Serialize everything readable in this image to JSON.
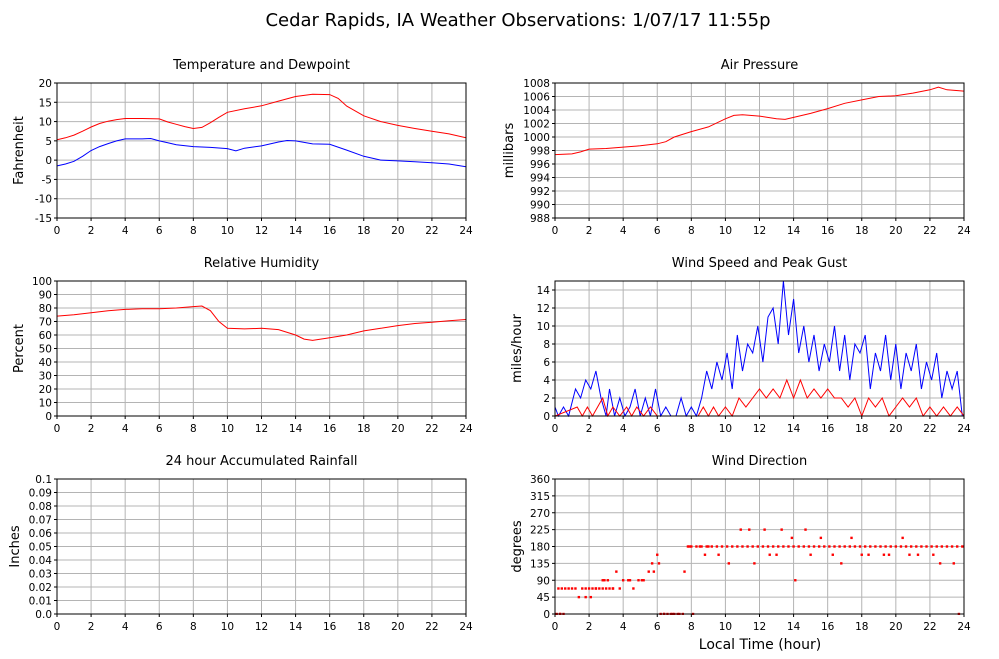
{
  "page_title": "Cedar Rapids, IA Weather Observations: 1/07/17 11:55p",
  "shared_xlabel": "Local Time (hour)",
  "colors": {
    "red": "#ff0000",
    "blue": "#0000ff",
    "grid": "#b4b4b4",
    "axis": "#000000"
  },
  "chart_data": [
    {
      "id": "temp",
      "type": "line",
      "title": "Temperature and Dewpoint",
      "ylabel": "Fahrenheit",
      "xlabel": "",
      "xlim": [
        0,
        24
      ],
      "ylim": [
        -15,
        20
      ],
      "yticks": [
        -15,
        -10,
        -5,
        0,
        5,
        10,
        15,
        20
      ],
      "xticks": [
        0,
        2,
        4,
        6,
        8,
        10,
        12,
        14,
        16,
        18,
        20,
        22,
        24
      ],
      "grid": true,
      "series": [
        {
          "color": "#ff0000",
          "x": [
            0,
            0.5,
            1,
            1.5,
            2,
            2.5,
            3,
            3.5,
            4,
            5,
            6,
            6.5,
            7,
            7.5,
            8,
            8.5,
            9,
            9.5,
            10,
            11,
            12,
            13,
            14,
            15,
            16,
            16.5,
            17,
            18,
            19,
            20,
            21,
            22,
            23,
            24
          ],
          "y": [
            5.3,
            5.8,
            6.5,
            7.5,
            8.6,
            9.5,
            10.1,
            10.5,
            10.8,
            10.8,
            10.7,
            9.9,
            9.3,
            8.7,
            8.2,
            8.5,
            9.7,
            11.1,
            12.4,
            13.3,
            14.1,
            15.3,
            16.5,
            17.1,
            17.0,
            16.0,
            14.0,
            11.5,
            10.0,
            9.0,
            8.2,
            7.5,
            6.8,
            5.8
          ]
        },
        {
          "color": "#0000ff",
          "x": [
            0,
            0.5,
            1,
            1.5,
            2,
            2.5,
            3,
            3.5,
            4,
            5,
            5.5,
            6,
            6.5,
            7,
            8,
            9,
            10,
            10.5,
            11,
            12,
            13,
            13.5,
            14,
            15,
            16,
            17,
            18,
            19,
            20,
            21,
            22,
            23,
            24
          ],
          "y": [
            -1.5,
            -1.0,
            -0.3,
            1.0,
            2.5,
            3.5,
            4.3,
            5.0,
            5.5,
            5.5,
            5.6,
            5.0,
            4.5,
            4.0,
            3.5,
            3.3,
            3.0,
            2.4,
            3.1,
            3.7,
            4.7,
            5.1,
            5.0,
            4.2,
            4.1,
            2.6,
            1.0,
            0.0,
            -0.2,
            -0.4,
            -0.7,
            -1.0,
            -1.7
          ]
        }
      ]
    },
    {
      "id": "pressure",
      "type": "line",
      "title": "Air Pressure",
      "ylabel": "millibars",
      "xlabel": "",
      "xlim": [
        0,
        24
      ],
      "ylim": [
        988,
        1008
      ],
      "yticks": [
        988,
        990,
        992,
        994,
        996,
        998,
        1000,
        1002,
        1004,
        1006,
        1008
      ],
      "xticks": [
        0,
        2,
        4,
        6,
        8,
        10,
        12,
        14,
        16,
        18,
        20,
        22,
        24
      ],
      "grid": true,
      "series": [
        {
          "color": "#ff0000",
          "x": [
            0,
            1,
            1.5,
            2,
            3,
            4,
            5,
            6,
            6.5,
            7,
            8,
            9,
            10,
            10.5,
            11,
            12,
            13,
            13.5,
            14,
            15,
            16,
            17,
            18,
            19,
            20,
            21,
            22,
            22.5,
            23,
            24
          ],
          "y": [
            997.4,
            997.5,
            997.8,
            998.2,
            998.3,
            998.5,
            998.7,
            999.0,
            999.3,
            1000.0,
            1000.8,
            1001.5,
            1002.7,
            1003.2,
            1003.3,
            1003.1,
            1002.7,
            1002.6,
            1002.9,
            1003.5,
            1004.2,
            1005.0,
            1005.5,
            1006.0,
            1006.1,
            1006.5,
            1007.0,
            1007.4,
            1007.0,
            1006.8
          ]
        }
      ]
    },
    {
      "id": "humidity",
      "type": "line",
      "title": "Relative Humidity",
      "ylabel": "Percent",
      "xlabel": "",
      "xlim": [
        0,
        24
      ],
      "ylim": [
        0,
        100
      ],
      "yticks": [
        0,
        10,
        20,
        30,
        40,
        50,
        60,
        70,
        80,
        90,
        100
      ],
      "xticks": [
        0,
        2,
        4,
        6,
        8,
        10,
        12,
        14,
        16,
        18,
        20,
        22,
        24
      ],
      "grid": true,
      "series": [
        {
          "color": "#ff0000",
          "x": [
            0,
            1,
            2,
            3,
            4,
            5,
            6,
            7,
            8,
            8.5,
            9,
            9.5,
            10,
            11,
            12,
            13,
            14,
            14.5,
            15,
            16,
            17,
            18,
            19,
            20,
            21,
            22,
            23,
            24
          ],
          "y": [
            74,
            75,
            76.5,
            78,
            79,
            79.5,
            79.5,
            80,
            81,
            81.5,
            78,
            70,
            65,
            64.5,
            65,
            64,
            60,
            57,
            56,
            58,
            60,
            63,
            65,
            67,
            68.5,
            69.5,
            70.5,
            71.5
          ]
        }
      ]
    },
    {
      "id": "wind",
      "type": "line",
      "title": "Wind Speed and Peak Gust",
      "ylabel": "miles/hour",
      "xlabel": "",
      "xlim": [
        0,
        24
      ],
      "ylim": [
        0,
        15
      ],
      "yticks": [
        0,
        2,
        4,
        6,
        8,
        10,
        12,
        14
      ],
      "xticks": [
        0,
        2,
        4,
        6,
        8,
        10,
        12,
        14,
        16,
        18,
        20,
        22,
        24
      ],
      "grid": true,
      "series": [
        {
          "color": "#0000ff",
          "x": [
            0,
            0.2,
            0.5,
            0.8,
            1.2,
            1.5,
            1.8,
            2.1,
            2.4,
            2.7,
            3.0,
            3.2,
            3.5,
            3.8,
            4.1,
            4.4,
            4.7,
            5.0,
            5.3,
            5.6,
            5.9,
            6.2,
            6.5,
            6.8,
            7.1,
            7.4,
            7.7,
            8.0,
            8.3,
            8.6,
            8.9,
            9.2,
            9.5,
            9.8,
            10.1,
            10.4,
            10.7,
            11.0,
            11.3,
            11.6,
            11.9,
            12.2,
            12.5,
            12.8,
            13.1,
            13.4,
            13.7,
            14.0,
            14.3,
            14.6,
            14.9,
            15.2,
            15.5,
            15.8,
            16.1,
            16.4,
            16.7,
            17.0,
            17.3,
            17.6,
            17.9,
            18.2,
            18.5,
            18.8,
            19.1,
            19.4,
            19.7,
            20.0,
            20.3,
            20.6,
            20.9,
            21.2,
            21.5,
            21.8,
            22.1,
            22.4,
            22.7,
            23.0,
            23.3,
            23.6,
            23.9
          ],
          "y": [
            1,
            0,
            1,
            0,
            3,
            2,
            4,
            3,
            5,
            2,
            0,
            3,
            0,
            2,
            0,
            1,
            3,
            0,
            2,
            0,
            3,
            0,
            1,
            0,
            0,
            2,
            0,
            1,
            0,
            2,
            5,
            3,
            6,
            4,
            7,
            3,
            9,
            5,
            8,
            7,
            10,
            6,
            11,
            12,
            8,
            15,
            9,
            13,
            7,
            10,
            6,
            9,
            5,
            8,
            6,
            10,
            5,
            9,
            4,
            8,
            7,
            9,
            3,
            7,
            5,
            9,
            4,
            8,
            3,
            7,
            5,
            8,
            3,
            6,
            4,
            7,
            2,
            5,
            3,
            5,
            0
          ]
        },
        {
          "color": "#ff0000",
          "x": [
            0,
            1.3,
            1.6,
            1.9,
            2.2,
            2.5,
            2.8,
            3.1,
            3.4,
            3.8,
            4.2,
            4.5,
            4.8,
            5.2,
            5.6,
            6.0,
            8.4,
            8.7,
            9.0,
            9.3,
            9.6,
            10.0,
            10.4,
            10.8,
            11.2,
            11.6,
            12.0,
            12.4,
            12.8,
            13.2,
            13.6,
            14.0,
            14.4,
            14.8,
            15.2,
            15.6,
            16.0,
            16.4,
            16.8,
            17.2,
            17.6,
            18.0,
            18.4,
            18.8,
            19.2,
            19.6,
            20.0,
            20.4,
            20.8,
            21.2,
            21.6,
            22.0,
            22.4,
            22.8,
            23.2,
            23.6,
            24.0
          ],
          "y": [
            0,
            1,
            0,
            1,
            0,
            1,
            2,
            0,
            1,
            0,
            1,
            0,
            1,
            0,
            1,
            0,
            0,
            1,
            0,
            1,
            0,
            1,
            0,
            2,
            1,
            2,
            3,
            2,
            3,
            2,
            4,
            2,
            4,
            2,
            3,
            2,
            3,
            2,
            2,
            1,
            2,
            0,
            2,
            1,
            2,
            0,
            1,
            2,
            1,
            2,
            0,
            1,
            0,
            1,
            0,
            1,
            0
          ]
        }
      ]
    },
    {
      "id": "rain",
      "type": "line",
      "title": "24 hour Accumulated Rainfall",
      "ylabel": "Inches",
      "xlabel": "",
      "xlim": [
        0,
        24
      ],
      "ylim": [
        0,
        0.1
      ],
      "yticks": [
        0.0,
        0.01,
        0.02,
        0.03,
        0.04,
        0.05,
        0.06,
        0.07,
        0.08,
        0.09,
        0.1
      ],
      "yticklabels": [
        "0.0",
        "0.01",
        "0.02",
        "0.03",
        "0.04",
        "0.05",
        "0.06",
        "0.07",
        "0.08",
        "0.09",
        "0.1"
      ],
      "xticks": [
        0,
        2,
        4,
        6,
        8,
        10,
        12,
        14,
        16,
        18,
        20,
        22,
        24
      ],
      "grid": true,
      "series": [
        {
          "color": "#ff0000",
          "x": [
            0,
            24
          ],
          "y": [
            0,
            0
          ]
        }
      ]
    },
    {
      "id": "direction",
      "type": "scatter",
      "title": "Wind Direction",
      "ylabel": "degrees",
      "xlabel": "",
      "xlim": [
        0,
        24
      ],
      "ylim": [
        0,
        360
      ],
      "yticks": [
        0,
        45,
        90,
        135,
        180,
        225,
        270,
        315,
        360
      ],
      "xticks": [
        0,
        2,
        4,
        6,
        8,
        10,
        12,
        14,
        16,
        18,
        20,
        22,
        24
      ],
      "grid": true,
      "series": [
        {
          "color": "#ff0000",
          "x": [
            0.1,
            0.3,
            0.5,
            0.2,
            0.4,
            0.6,
            0.8,
            1.0,
            1.2,
            1.4,
            1.6,
            1.8,
            2.0,
            2.2,
            2.4,
            2.6,
            2.8,
            3.0,
            3.2,
            3.4,
            1.8,
            2.1,
            2.4,
            2.8,
            3.1,
            3.4,
            3.8,
            4.0,
            4.3,
            4.6,
            4.9,
            5.2,
            5.5,
            5.8,
            6.0,
            6.2,
            6.4,
            6.6,
            6.8,
            7.0,
            7.2,
            7.6,
            7.8,
            8.0,
            8.3,
            8.6,
            8.9,
            9.2,
            9.5,
            9.8,
            10.1,
            10.4,
            10.7,
            11.0,
            11.3,
            11.6,
            11.9,
            12.2,
            12.5,
            12.8,
            13.1,
            13.4,
            13.7,
            14.0,
            14.3,
            14.6,
            14.9,
            15.2,
            15.5,
            15.8,
            16.1,
            16.4,
            16.7,
            17.0,
            17.3,
            17.6,
            17.9,
            18.2,
            18.5,
            18.8,
            19.1,
            19.4,
            19.7,
            20.0,
            20.3,
            20.6,
            20.9,
            21.2,
            21.5,
            21.8,
            22.1,
            22.4,
            22.7,
            23.0,
            23.3,
            23.6,
            23.9,
            2.9,
            3.6,
            4.4,
            5.1,
            5.7,
            6.1,
            7.3,
            7.9,
            8.8,
            9.6,
            10.9,
            11.4,
            12.3,
            13.3,
            13.9,
            14.7,
            15.6,
            16.3,
            17.4,
            18.4,
            19.3,
            20.4,
            21.3,
            22.2,
            23.7,
            0.3,
            6.4,
            6.9,
            7.5,
            8.1,
            12.6,
            14.1,
            8.5,
            9.0,
            10.2,
            11.7,
            13.0,
            15.0,
            16.8,
            18.0,
            19.6,
            20.8,
            22.6,
            23.4
          ],
          "y": [
            0,
            0,
            0,
            68,
            68,
            68,
            68,
            68,
            68,
            45,
            68,
            68,
            68,
            68,
            68,
            68,
            68,
            68,
            68,
            68,
            45,
            45,
            68,
            90,
            90,
            68,
            68,
            90,
            90,
            68,
            90,
            90,
            113,
            113,
            158,
            0,
            0,
            0,
            0,
            0,
            0,
            113,
            180,
            180,
            180,
            180,
            180,
            180,
            180,
            180,
            180,
            180,
            180,
            180,
            180,
            180,
            180,
            180,
            180,
            180,
            180,
            180,
            180,
            180,
            180,
            180,
            180,
            180,
            180,
            180,
            180,
            180,
            180,
            180,
            180,
            180,
            180,
            180,
            180,
            180,
            180,
            180,
            180,
            180,
            180,
            180,
            180,
            180,
            180,
            180,
            180,
            180,
            180,
            180,
            180,
            180,
            180,
            90,
            113,
            90,
            90,
            135,
            135,
            0,
            180,
            158,
            158,
            225,
            225,
            225,
            225,
            203,
            225,
            203,
            158,
            203,
            158,
            158,
            203,
            158,
            158,
            0,
            0,
            0,
            0,
            0,
            0,
            158,
            90,
            180,
            180,
            135,
            135,
            158,
            158,
            135,
            158,
            158,
            158,
            135,
            135
          ]
        }
      ]
    }
  ]
}
